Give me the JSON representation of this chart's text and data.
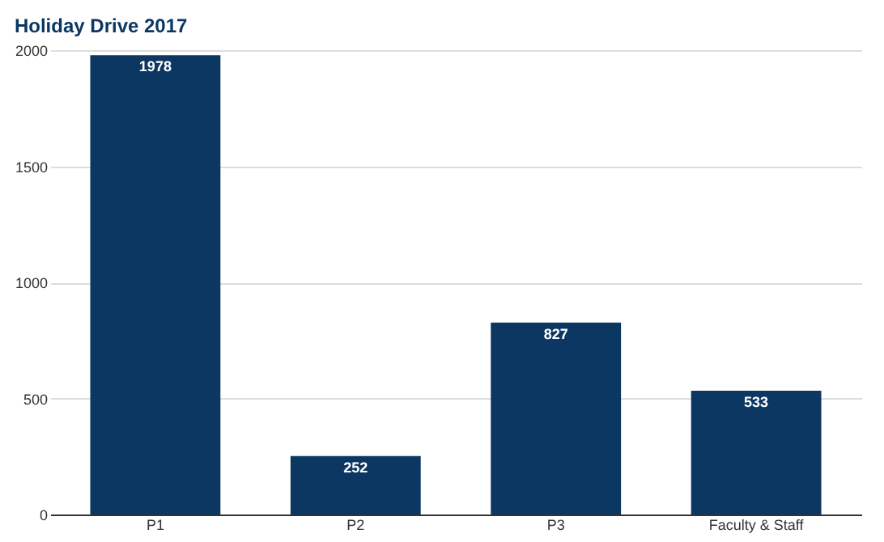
{
  "chart_data": {
    "type": "bar",
    "title": "Holiday Drive 2017",
    "categories": [
      "P1",
      "P2",
      "P3",
      "Faculty & Staff"
    ],
    "series": [
      {
        "color": "#0b3762",
        "values": [
          1978,
          252,
          827,
          533
        ]
      }
    ],
    "ylim": [
      0,
      2000
    ],
    "yticks": [
      0,
      500,
      1000,
      1500,
      2000
    ],
    "grid": "y",
    "data_labels": true
  }
}
